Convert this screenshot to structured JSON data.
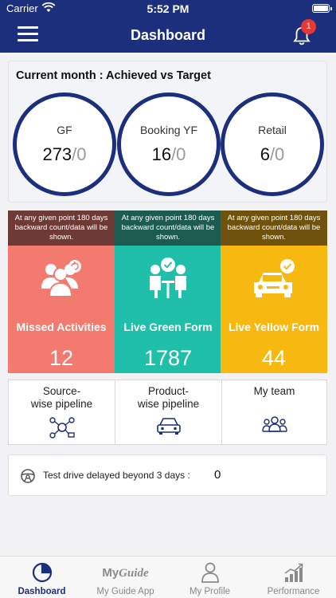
{
  "status_bar": {
    "carrier": "Carrier",
    "time": "5:52 PM"
  },
  "header": {
    "title": "Dashboard",
    "notification_count": "1"
  },
  "target": {
    "heading": "Current month : Achieved vs Target",
    "items": [
      {
        "label": "GF",
        "achieved": "273",
        "target": "/0"
      },
      {
        "label": "Booking YF",
        "achieved": "16",
        "target": "/0"
      },
      {
        "label": "Retail",
        "achieved": "6",
        "target": "/0"
      }
    ]
  },
  "tiles": [
    {
      "note": "At any given point 180 days backward count/data will be shown.",
      "title": "Missed Activities",
      "count": "12",
      "color": "#f27a6e",
      "note_color": "#6e3a35",
      "icon": "people-refresh-icon"
    },
    {
      "note": "At any given point 180 days backward count/data will be shown.",
      "title": "Live Green Form",
      "count": "1787",
      "color": "#1fbfaa",
      "note_color": "#1d5a50",
      "icon": "meeting-check-icon"
    },
    {
      "note": "At any given point 180 days backward count/data will be shown.",
      "title": "Live Yellow Form",
      "count": "44",
      "color": "#f7b80f",
      "note_color": "#6e520e",
      "icon": "car-check-icon"
    }
  ],
  "pipelines": [
    {
      "title_line1": "Source-",
      "title_line2": "wise pipeline",
      "icon": "network-icon"
    },
    {
      "title_line1": "Product-",
      "title_line2": "wise pipeline",
      "icon": "car-icon"
    },
    {
      "title_line1": "My team",
      "title_line2": "",
      "icon": "team-icon"
    }
  ],
  "test_drive": {
    "label": "Test drive delayed beyond 3 days :",
    "value": "0"
  },
  "tabbar": [
    {
      "label": "Dashboard",
      "active": true
    },
    {
      "label": "My Guide App",
      "logo_text": "My",
      "logo_text2": "Guide"
    },
    {
      "label": "My Profile"
    },
    {
      "label": "Performance"
    }
  ]
}
